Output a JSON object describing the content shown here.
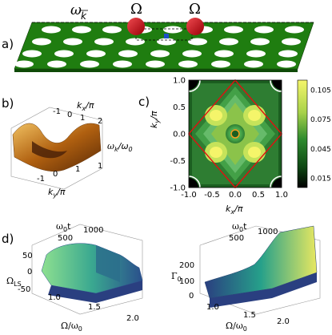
{
  "panels": {
    "a": "a)",
    "b": "b)",
    "c": "c)",
    "d": "d)"
  },
  "panel_a": {
    "omega_label": "ω",
    "k_label": "k",
    "big_omega_left": "Ω",
    "big_omega_right": "Ω"
  },
  "panel_b": {
    "kx_axis": "k",
    "kx_sub": "x",
    "kx_suffix": "/π",
    "ky_axis": "k",
    "ky_sub": "y",
    "ky_suffix": "/π",
    "wk_label": "ω",
    "wk_sub": "k",
    "wk_over": "/ω",
    "wk_sub0": "0",
    "ticks_kx": [
      "1",
      "0",
      "-1"
    ],
    "ticks_ky": [
      "-1",
      "0",
      "1"
    ],
    "ticks_z": [
      "2",
      "1"
    ]
  },
  "chart_data": [
    {
      "type": "heatmap",
      "panel": "c",
      "xlabel": "k_x/π",
      "ylabel": "k_y/π",
      "xticks": [
        "-1.0",
        "-0.5",
        "0.0",
        "0.5",
        "1.0"
      ],
      "yticks": [
        "-1.0",
        "-0.5",
        "0.0",
        "0.5",
        "1.0"
      ],
      "colorbar_ticks": [
        "0.105",
        "0.075",
        "0.045",
        "0.015"
      ],
      "xlim": [
        -1,
        1
      ],
      "ylim": [
        -1,
        1
      ],
      "colorbar_range": [
        0.005,
        0.115
      ]
    }
  ],
  "panel_d": {
    "left": {
      "time_axis": "ω",
      "time_sub": "0",
      "time_suffix": "t",
      "time_ticks": [
        "500",
        "1000"
      ],
      "z_label": "Ω",
      "z_sub": "LS",
      "z_ticks": [
        "50",
        "0",
        "-50"
      ],
      "x_label": "Ω/ω",
      "x_sub": "0",
      "x_ticks": [
        "1.0",
        "1.5",
        "2.0"
      ]
    },
    "right": {
      "time_axis": "ω",
      "time_sub": "0",
      "time_suffix": "t",
      "time_ticks": [
        "500",
        "1000"
      ],
      "z_label": "Γ",
      "z_sub": "0",
      "z_ticks": [
        "200",
        "100",
        "0"
      ],
      "x_label": "Ω/ω",
      "x_sub": "0",
      "x_ticks": [
        "1.0",
        "1.5",
        "2.0"
      ]
    }
  },
  "colors": {
    "lattice_green": "#1f7d10",
    "atom_red": "#d0101a",
    "contour_red": "#e01010"
  }
}
